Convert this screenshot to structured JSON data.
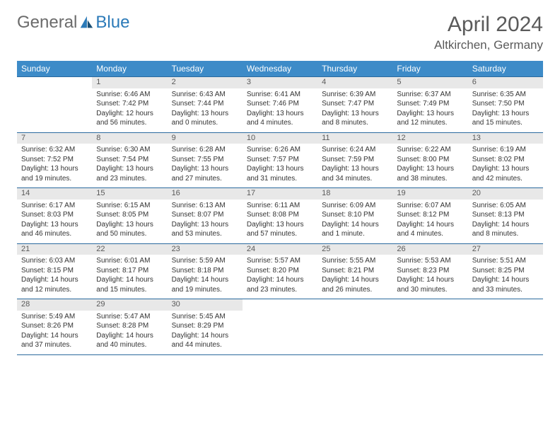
{
  "logo": {
    "general": "General",
    "blue": "Blue"
  },
  "title": "April 2024",
  "location": "Altkirchen, Germany",
  "colors": {
    "header_bg": "#3d8bc8",
    "header_text": "#ffffff",
    "daynum_bg": "#e8e8e8",
    "border": "#2b6a9e",
    "text": "#333333",
    "title_text": "#5a5a5a"
  },
  "day_headers": [
    "Sunday",
    "Monday",
    "Tuesday",
    "Wednesday",
    "Thursday",
    "Friday",
    "Saturday"
  ],
  "weeks": [
    [
      {
        "n": "",
        "sr": "",
        "ss": "",
        "d1": "",
        "d2": ""
      },
      {
        "n": "1",
        "sr": "Sunrise: 6:46 AM",
        "ss": "Sunset: 7:42 PM",
        "d1": "Daylight: 12 hours",
        "d2": "and 56 minutes."
      },
      {
        "n": "2",
        "sr": "Sunrise: 6:43 AM",
        "ss": "Sunset: 7:44 PM",
        "d1": "Daylight: 13 hours",
        "d2": "and 0 minutes."
      },
      {
        "n": "3",
        "sr": "Sunrise: 6:41 AM",
        "ss": "Sunset: 7:46 PM",
        "d1": "Daylight: 13 hours",
        "d2": "and 4 minutes."
      },
      {
        "n": "4",
        "sr": "Sunrise: 6:39 AM",
        "ss": "Sunset: 7:47 PM",
        "d1": "Daylight: 13 hours",
        "d2": "and 8 minutes."
      },
      {
        "n": "5",
        "sr": "Sunrise: 6:37 AM",
        "ss": "Sunset: 7:49 PM",
        "d1": "Daylight: 13 hours",
        "d2": "and 12 minutes."
      },
      {
        "n": "6",
        "sr": "Sunrise: 6:35 AM",
        "ss": "Sunset: 7:50 PM",
        "d1": "Daylight: 13 hours",
        "d2": "and 15 minutes."
      }
    ],
    [
      {
        "n": "7",
        "sr": "Sunrise: 6:32 AM",
        "ss": "Sunset: 7:52 PM",
        "d1": "Daylight: 13 hours",
        "d2": "and 19 minutes."
      },
      {
        "n": "8",
        "sr": "Sunrise: 6:30 AM",
        "ss": "Sunset: 7:54 PM",
        "d1": "Daylight: 13 hours",
        "d2": "and 23 minutes."
      },
      {
        "n": "9",
        "sr": "Sunrise: 6:28 AM",
        "ss": "Sunset: 7:55 PM",
        "d1": "Daylight: 13 hours",
        "d2": "and 27 minutes."
      },
      {
        "n": "10",
        "sr": "Sunrise: 6:26 AM",
        "ss": "Sunset: 7:57 PM",
        "d1": "Daylight: 13 hours",
        "d2": "and 31 minutes."
      },
      {
        "n": "11",
        "sr": "Sunrise: 6:24 AM",
        "ss": "Sunset: 7:59 PM",
        "d1": "Daylight: 13 hours",
        "d2": "and 34 minutes."
      },
      {
        "n": "12",
        "sr": "Sunrise: 6:22 AM",
        "ss": "Sunset: 8:00 PM",
        "d1": "Daylight: 13 hours",
        "d2": "and 38 minutes."
      },
      {
        "n": "13",
        "sr": "Sunrise: 6:19 AM",
        "ss": "Sunset: 8:02 PM",
        "d1": "Daylight: 13 hours",
        "d2": "and 42 minutes."
      }
    ],
    [
      {
        "n": "14",
        "sr": "Sunrise: 6:17 AM",
        "ss": "Sunset: 8:03 PM",
        "d1": "Daylight: 13 hours",
        "d2": "and 46 minutes."
      },
      {
        "n": "15",
        "sr": "Sunrise: 6:15 AM",
        "ss": "Sunset: 8:05 PM",
        "d1": "Daylight: 13 hours",
        "d2": "and 50 minutes."
      },
      {
        "n": "16",
        "sr": "Sunrise: 6:13 AM",
        "ss": "Sunset: 8:07 PM",
        "d1": "Daylight: 13 hours",
        "d2": "and 53 minutes."
      },
      {
        "n": "17",
        "sr": "Sunrise: 6:11 AM",
        "ss": "Sunset: 8:08 PM",
        "d1": "Daylight: 13 hours",
        "d2": "and 57 minutes."
      },
      {
        "n": "18",
        "sr": "Sunrise: 6:09 AM",
        "ss": "Sunset: 8:10 PM",
        "d1": "Daylight: 14 hours",
        "d2": "and 1 minute."
      },
      {
        "n": "19",
        "sr": "Sunrise: 6:07 AM",
        "ss": "Sunset: 8:12 PM",
        "d1": "Daylight: 14 hours",
        "d2": "and 4 minutes."
      },
      {
        "n": "20",
        "sr": "Sunrise: 6:05 AM",
        "ss": "Sunset: 8:13 PM",
        "d1": "Daylight: 14 hours",
        "d2": "and 8 minutes."
      }
    ],
    [
      {
        "n": "21",
        "sr": "Sunrise: 6:03 AM",
        "ss": "Sunset: 8:15 PM",
        "d1": "Daylight: 14 hours",
        "d2": "and 12 minutes."
      },
      {
        "n": "22",
        "sr": "Sunrise: 6:01 AM",
        "ss": "Sunset: 8:17 PM",
        "d1": "Daylight: 14 hours",
        "d2": "and 15 minutes."
      },
      {
        "n": "23",
        "sr": "Sunrise: 5:59 AM",
        "ss": "Sunset: 8:18 PM",
        "d1": "Daylight: 14 hours",
        "d2": "and 19 minutes."
      },
      {
        "n": "24",
        "sr": "Sunrise: 5:57 AM",
        "ss": "Sunset: 8:20 PM",
        "d1": "Daylight: 14 hours",
        "d2": "and 23 minutes."
      },
      {
        "n": "25",
        "sr": "Sunrise: 5:55 AM",
        "ss": "Sunset: 8:21 PM",
        "d1": "Daylight: 14 hours",
        "d2": "and 26 minutes."
      },
      {
        "n": "26",
        "sr": "Sunrise: 5:53 AM",
        "ss": "Sunset: 8:23 PM",
        "d1": "Daylight: 14 hours",
        "d2": "and 30 minutes."
      },
      {
        "n": "27",
        "sr": "Sunrise: 5:51 AM",
        "ss": "Sunset: 8:25 PM",
        "d1": "Daylight: 14 hours",
        "d2": "and 33 minutes."
      }
    ],
    [
      {
        "n": "28",
        "sr": "Sunrise: 5:49 AM",
        "ss": "Sunset: 8:26 PM",
        "d1": "Daylight: 14 hours",
        "d2": "and 37 minutes."
      },
      {
        "n": "29",
        "sr": "Sunrise: 5:47 AM",
        "ss": "Sunset: 8:28 PM",
        "d1": "Daylight: 14 hours",
        "d2": "and 40 minutes."
      },
      {
        "n": "30",
        "sr": "Sunrise: 5:45 AM",
        "ss": "Sunset: 8:29 PM",
        "d1": "Daylight: 14 hours",
        "d2": "and 44 minutes."
      },
      {
        "n": "",
        "sr": "",
        "ss": "",
        "d1": "",
        "d2": ""
      },
      {
        "n": "",
        "sr": "",
        "ss": "",
        "d1": "",
        "d2": ""
      },
      {
        "n": "",
        "sr": "",
        "ss": "",
        "d1": "",
        "d2": ""
      },
      {
        "n": "",
        "sr": "",
        "ss": "",
        "d1": "",
        "d2": ""
      }
    ]
  ]
}
